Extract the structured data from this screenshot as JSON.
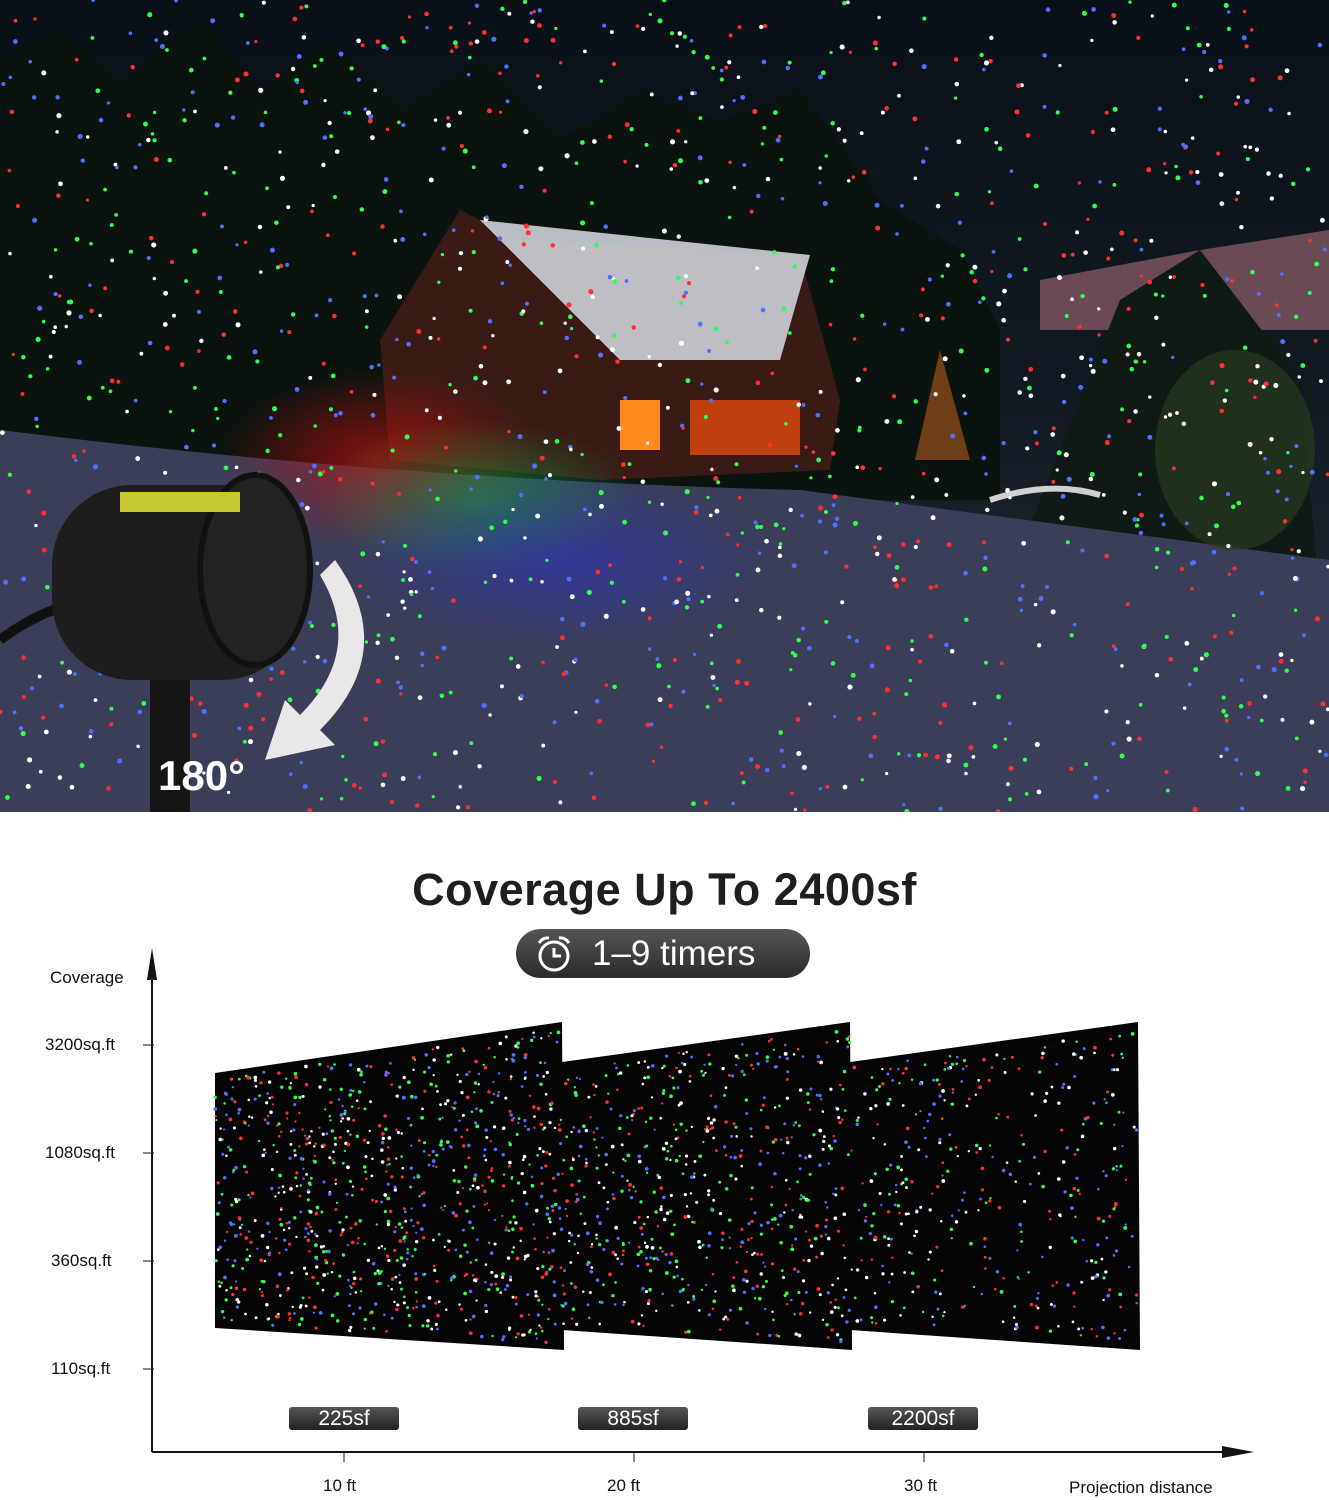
{
  "photo": {
    "angle_label": "180°",
    "dot_colors": [
      "#ff3030",
      "#30ff50",
      "#5070ff",
      "#ffffff"
    ]
  },
  "infographic": {
    "title": "Coverage Up To 2400sf",
    "timer_badge": {
      "icon": "alarm-clock-icon",
      "label": "1–9 timers"
    },
    "y_axis": {
      "label": "Coverage",
      "ticks": [
        "3200sq.ft",
        "1080sq.ft",
        "360sq.ft",
        "110sq.ft"
      ]
    },
    "x_axis": {
      "label": "Projection distance",
      "ticks": [
        "10 ft",
        "20 ft",
        "30 ft"
      ]
    },
    "values": [
      "225sf",
      "885sf",
      "2200sf"
    ]
  }
}
